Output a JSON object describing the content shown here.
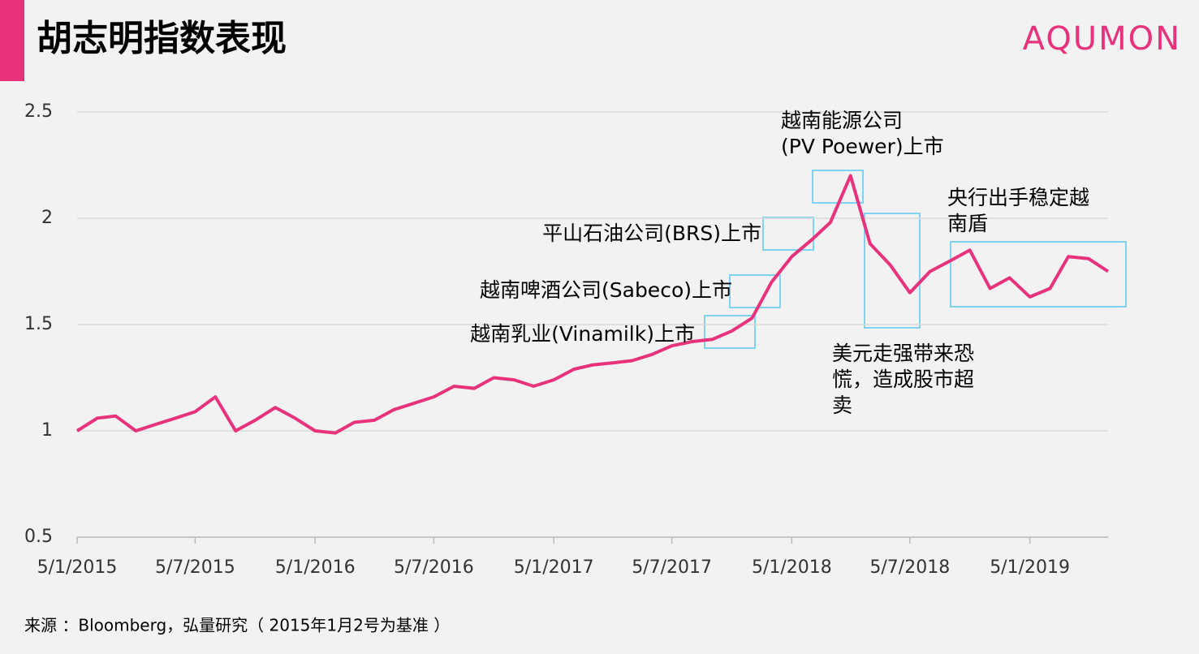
{
  "header": {
    "title": "胡志明指数表现",
    "logo": "AQUMON"
  },
  "chart_data": {
    "type": "line",
    "x": [
      "5/1/2015",
      "5/2/2015",
      "5/3/2015",
      "5/4/2015",
      "5/5/2015",
      "5/6/2015",
      "5/7/2015",
      "5/8/2015",
      "5/9/2015",
      "5/10/2015",
      "5/11/2015",
      "5/12/2015",
      "5/1/2016",
      "5/2/2016",
      "5/3/2016",
      "5/4/2016",
      "5/5/2016",
      "5/6/2016",
      "5/7/2016",
      "5/8/2016",
      "5/9/2016",
      "5/10/2016",
      "5/11/2016",
      "5/12/2016",
      "5/1/2017",
      "5/2/2017",
      "5/3/2017",
      "5/4/2017",
      "5/5/2017",
      "5/6/2017",
      "5/7/2017",
      "5/8/2017",
      "5/9/2017",
      "5/10/2017",
      "5/11/2017",
      "5/12/2017",
      "5/1/2018",
      "5/2/2018",
      "5/3/2018",
      "5/4/2018",
      "5/5/2018",
      "5/6/2018",
      "5/7/2018",
      "5/8/2018",
      "5/9/2018",
      "5/10/2018",
      "5/11/2018",
      "5/12/2018",
      "5/1/2019",
      "5/2/2019",
      "5/3/2019",
      "5/4/2019",
      "5/5/2019"
    ],
    "series": [
      {
        "name": "胡志明指数",
        "color": "#e8337c",
        "values": [
          1.0,
          1.06,
          1.07,
          1.0,
          1.03,
          1.06,
          1.09,
          1.16,
          1.0,
          1.05,
          1.11,
          1.06,
          1.0,
          0.99,
          1.04,
          1.05,
          1.1,
          1.13,
          1.16,
          1.21,
          1.2,
          1.25,
          1.24,
          1.21,
          1.24,
          1.29,
          1.31,
          1.32,
          1.33,
          1.36,
          1.4,
          1.42,
          1.43,
          1.47,
          1.53,
          1.7,
          1.82,
          1.9,
          1.98,
          2.2,
          1.88,
          1.78,
          1.65,
          1.75,
          1.8,
          1.85,
          1.67,
          1.72,
          1.63,
          1.67,
          1.82,
          1.81,
          1.75
        ]
      }
    ],
    "xlim": [
      "5/1/2015",
      "5/5/2019"
    ],
    "xticks": [
      "5/1/2015",
      "5/7/2015",
      "5/1/2016",
      "5/7/2016",
      "5/1/2017",
      "5/7/2017",
      "5/1/2018",
      "5/7/2018",
      "5/1/2019"
    ],
    "ylim": [
      0.5,
      2.5
    ],
    "yticks": [
      0.5,
      1,
      1.5,
      2,
      2.5
    ],
    "grid": true,
    "annotations": [
      {
        "lines": [
          "越南能源公司",
          "(PV Poewer)上市"
        ]
      },
      {
        "lines": [
          "平山石油公司(BRS)上市"
        ]
      },
      {
        "lines": [
          "越南啤酒公司(Sabeco)上市"
        ]
      },
      {
        "lines": [
          "越南乳业(Vinamilk)上市"
        ]
      },
      {
        "lines": [
          "央行出手稳定越",
          "南盾"
        ]
      },
      {
        "lines": [
          "美元走强带来恐",
          "慌，造成股市超",
          "卖"
        ]
      }
    ],
    "source": "来源 ：Bloomberg，弘量研究（ 2015年1月2号为基准 ）"
  }
}
